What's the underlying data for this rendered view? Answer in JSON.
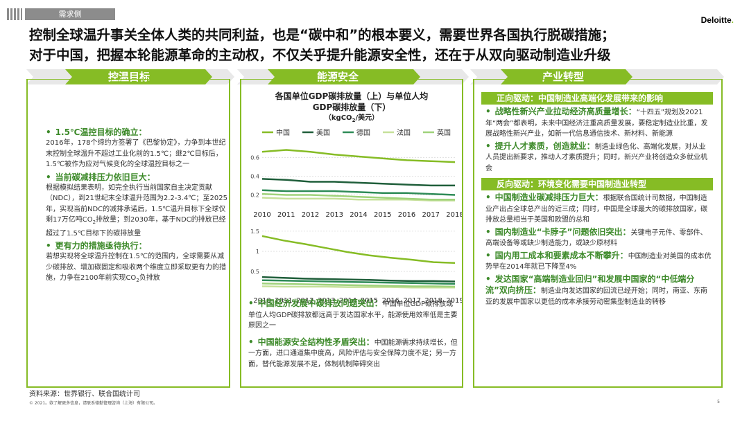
{
  "tag": "需求侧",
  "logo": "Deloitte",
  "headline": {
    "line1": "控制全球温升事关全体人类的共同利益，也是“碳中和”的根本要义，需要世界各国执行脱碳措施；",
    "line2": "对于中国，把握本轮能源革命的主动权，不仅关乎提升能源安全性，还在于从双向驱动制造业升级"
  },
  "sections": {
    "s1": "控温目标",
    "s2": "能源安全",
    "s3": "产业转型"
  },
  "panel1": {
    "items": [
      {
        "head": "1.5℃温控目标的确立：",
        "text": "2016年，178个缔约方签署了《巴黎协定》，力争到本世纪末控制全球温升不超过工业化前的1.5℃；继2℃目标后，1.5℃被作为应对气候变化的全球温控目标之一"
      },
      {
        "head": "当前碳减排压力依旧巨大：",
        "text_a": "根据模拟结果表明，如完全执行当前国家自主决定贡献（NDC），到21世纪末全球温升范围为2.2-3.4℃；至2025年，实现当前NDC的减排承诺后，1.5℃温升目标下全球仅剩17万亿吨CO",
        "sub": "2",
        "text_b": "排放量；到2030年，基于NDC的排放已经超过了1.5℃目标下的碳排放量"
      },
      {
        "head": "更有力的措施亟待执行：",
        "text_a": "若想实现将全球温升控制在1.5℃的范围内，全球需要从减少碳排放、增加碳固定和吸收两个维度立即采取更有力的措施，力争在2100年前实现CO",
        "sub": "2",
        "text_b": "负排放"
      }
    ]
  },
  "panel2": {
    "chart_title1": "各国单位GDP碳排放量（上）与单位人均",
    "chart_title2": "GDP碳排放量（下）",
    "chart_unit_a": "（kgCO",
    "chart_unit_sub": "2",
    "chart_unit_b": "/美元）",
    "items": [
      {
        "head": "中国经济发展中碳排放问题突出：",
        "text": "中国单位GDP碳排放或单位人均GDP碳排放都远高于发达国家水平，能源使用效率低是主要原因之一"
      },
      {
        "head": "中国能源安全结构性矛盾突出：",
        "text": "中国能源需求持续增长，但一方面，进口通道集中度高，风险评估与安全保障力度不足；另一方面，替代能源发展不足，体制机制障碍突出"
      }
    ]
  },
  "panel3": {
    "sub1": "正向驱动：中国制造业高端化发展带来的影响",
    "items1": [
      {
        "head": "战略性新兴产业拉动经济高质量增长：",
        "text": "“十四五”规划及2021年“两会”都表明，未来中国经济注重高质量发展，要稳定制造业比重，发展战略性新兴产业，如新一代信息通信技术、新材料、新能源"
      },
      {
        "head": "提升人才素质，创造就业：",
        "text": "制造业绿色化、高端化发展，对从业人员提出新要求，推动人才素质提升；同时，新兴产业将创造众多就业机会"
      }
    ],
    "sub2": "反向驱动：环境变化需要中国制造业转型",
    "items2": [
      {
        "head": "中国制造业碳减排压力巨大：",
        "text": "根据联合国统计司数据，中国制造业产出占全球总产出的近三成；同时，中国是全球最大的碳排放国家，碳排放总量相当于美国和欧盟的总和"
      },
      {
        "head": "国内制造业“卡脖子”问题依旧突出：",
        "text": "关键电子元件、零部件、高端设备等或缺少制造能力，或缺少原材料"
      },
      {
        "head": "国内用工成本和要素成本不断攀升：",
        "text": "中国制造业对美国的成本优势早在2014年就已下降至4%"
      },
      {
        "head": "发达国家“高端制造业回归”和发展中国家的“中低端分流”双向挤压：",
        "text": "制造业向发达国家的回流已经开始；同时，南亚、东南亚的发展中国家以更低的成本承接劳动密集型制造业的转移"
      }
    ]
  },
  "footer": {
    "source": "资料来源：世界银行、联合国统计司",
    "copyright": "© 2021。欲了解更多信息，请联系德勤管理咨询（上海）有限公司。",
    "page": "5"
  },
  "chart_data": [
    {
      "type": "line",
      "title": "各国单位GDP碳排放量（上）与单位人均GDP碳排放量（下）",
      "ylabel": "kgCO2/美元",
      "x": [
        2010,
        2011,
        2012,
        2013,
        2014,
        2015,
        2016,
        2017,
        2018
      ],
      "yticks": [
        0.2,
        0.4,
        0.6
      ],
      "ylim": [
        0.1,
        0.75
      ],
      "legend": "top",
      "colors": {
        "中国": "#86bc25",
        "美国": "#1f5e3a",
        "德国": "#2e8b57",
        "法国": "#c6e09a",
        "英国": "#9fd27a"
      },
      "series": [
        {
          "name": "中国",
          "values": [
            0.66,
            0.68,
            0.66,
            0.63,
            0.61,
            0.59,
            0.57,
            0.56,
            0.55
          ]
        },
        {
          "name": "美国",
          "values": [
            0.37,
            0.36,
            0.34,
            0.34,
            0.33,
            0.32,
            0.31,
            0.3,
            0.3
          ]
        },
        {
          "name": "德国",
          "values": [
            0.25,
            0.24,
            0.24,
            0.24,
            0.23,
            0.22,
            0.22,
            0.21,
            0.2
          ]
        },
        {
          "name": "法国",
          "values": [
            0.17,
            0.16,
            0.16,
            0.16,
            0.15,
            0.15,
            0.15,
            0.14,
            0.14
          ]
        },
        {
          "name": "英国",
          "values": [
            0.21,
            0.2,
            0.2,
            0.19,
            0.18,
            0.17,
            0.16,
            0.15,
            0.15
          ]
        }
      ]
    },
    {
      "type": "line",
      "title": "",
      "x": [
        2010,
        2011,
        2012,
        2013,
        2014,
        2015,
        2016,
        2017,
        2018,
        2019
      ],
      "yticks": [
        0.5,
        1.0,
        1.5
      ],
      "ylim": [
        0,
        1.55
      ],
      "series": [
        {
          "name": "中国",
          "values": [
            1.38,
            1.27,
            1.18,
            1.08,
            0.98,
            0.9,
            0.84,
            0.79,
            0.73,
            0.71
          ]
        },
        {
          "name": "美国",
          "values": [
            0.36,
            0.34,
            0.32,
            0.31,
            0.3,
            0.29,
            0.27,
            0.26,
            0.26,
            0.25
          ]
        },
        {
          "name": "德国",
          "values": [
            0.28,
            0.27,
            0.26,
            0.25,
            0.24,
            0.23,
            0.22,
            0.21,
            0.2,
            0.19
          ]
        },
        {
          "name": "法国",
          "values": [
            0.13,
            0.12,
            0.12,
            0.12,
            0.11,
            0.11,
            0.11,
            0.1,
            0.1,
            0.1
          ]
        },
        {
          "name": "英国",
          "values": [
            0.2,
            0.19,
            0.18,
            0.17,
            0.16,
            0.15,
            0.14,
            0.13,
            0.13,
            0.12
          ]
        }
      ]
    }
  ]
}
